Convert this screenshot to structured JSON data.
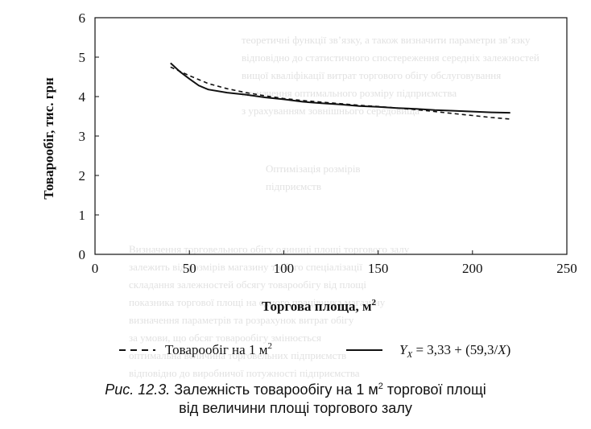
{
  "chart_data": {
    "type": "line",
    "xlabel": "Торгова площа, м",
    "xlabel_sup": "2",
    "ylabel": "Товарообіг, тис. грн",
    "xlim": [
      0,
      250
    ],
    "ylim": [
      0,
      6
    ],
    "xticks": [
      0,
      50,
      100,
      150,
      200,
      250
    ],
    "yticks": [
      0,
      1,
      2,
      3,
      4,
      5,
      6
    ],
    "grid": false,
    "legend_position": "bottom",
    "series": [
      {
        "name": "Товарообіг на 1 м",
        "name_sup": "2",
        "style": "dashed",
        "x": [
          40,
          45,
          50,
          60,
          70,
          80,
          90,
          100,
          110,
          120,
          130,
          140,
          150,
          160,
          170,
          180,
          190,
          200,
          210,
          220
        ],
        "y": [
          4.75,
          4.64,
          4.53,
          4.33,
          4.2,
          4.1,
          4.02,
          3.95,
          3.9,
          3.86,
          3.82,
          3.78,
          3.75,
          3.71,
          3.67,
          3.62,
          3.57,
          3.52,
          3.47,
          3.43
        ]
      },
      {
        "name": "Y_X = 3,33 + (59,3/X)",
        "name_main": "Y",
        "name_sub": "X",
        "name_rest": " = 3,33 + (59,3/",
        "name_var": "X",
        "name_end": ")",
        "style": "solid",
        "x": [
          40,
          45,
          50,
          55,
          60,
          70,
          80,
          90,
          100,
          110,
          120,
          130,
          140,
          150,
          160,
          170,
          180,
          190,
          200,
          210,
          220
        ],
        "y": [
          4.85,
          4.63,
          4.45,
          4.28,
          4.18,
          4.1,
          4.05,
          3.98,
          3.93,
          3.87,
          3.83,
          3.8,
          3.76,
          3.74,
          3.71,
          3.69,
          3.66,
          3.64,
          3.62,
          3.6,
          3.59
        ]
      }
    ]
  },
  "caption": {
    "prefix": "Рис. 12.3.",
    "line1": " Залежність товарообігу на 1 м",
    "line1_sup": "2",
    "line1_end": " торгової площі",
    "line2": "від величини площі торгового залу"
  },
  "background_text": [
    "теоретичні функції зв’язку, а також визначити параметри зв’язку",
    "відповідно до статистичного спостереження середніх залежностей",
    "вищої кваліфікації витрат торгового обігу обслуговування",
    "визначення оптимального розміру підприємства",
    "з урахуванням зовнішнього середовища",
    "Оптимізація розмірів",
    "підприємств",
    "Визначення торговельного обігу одиниці площі торгового залу",
    "залежить від розмірів магазину та його спеціалізації",
    "складання залежностей обсягу товарообігу від площі",
    "показника торгової площі на одного працівника магазину",
    "визначення параметрів та розрахунок витрат обігу",
    "за умови, що обсяг товарообігу змінюється",
    "оптимальна величина торговельних підприємств",
    "відповідно до виробничої потужності підприємства"
  ]
}
